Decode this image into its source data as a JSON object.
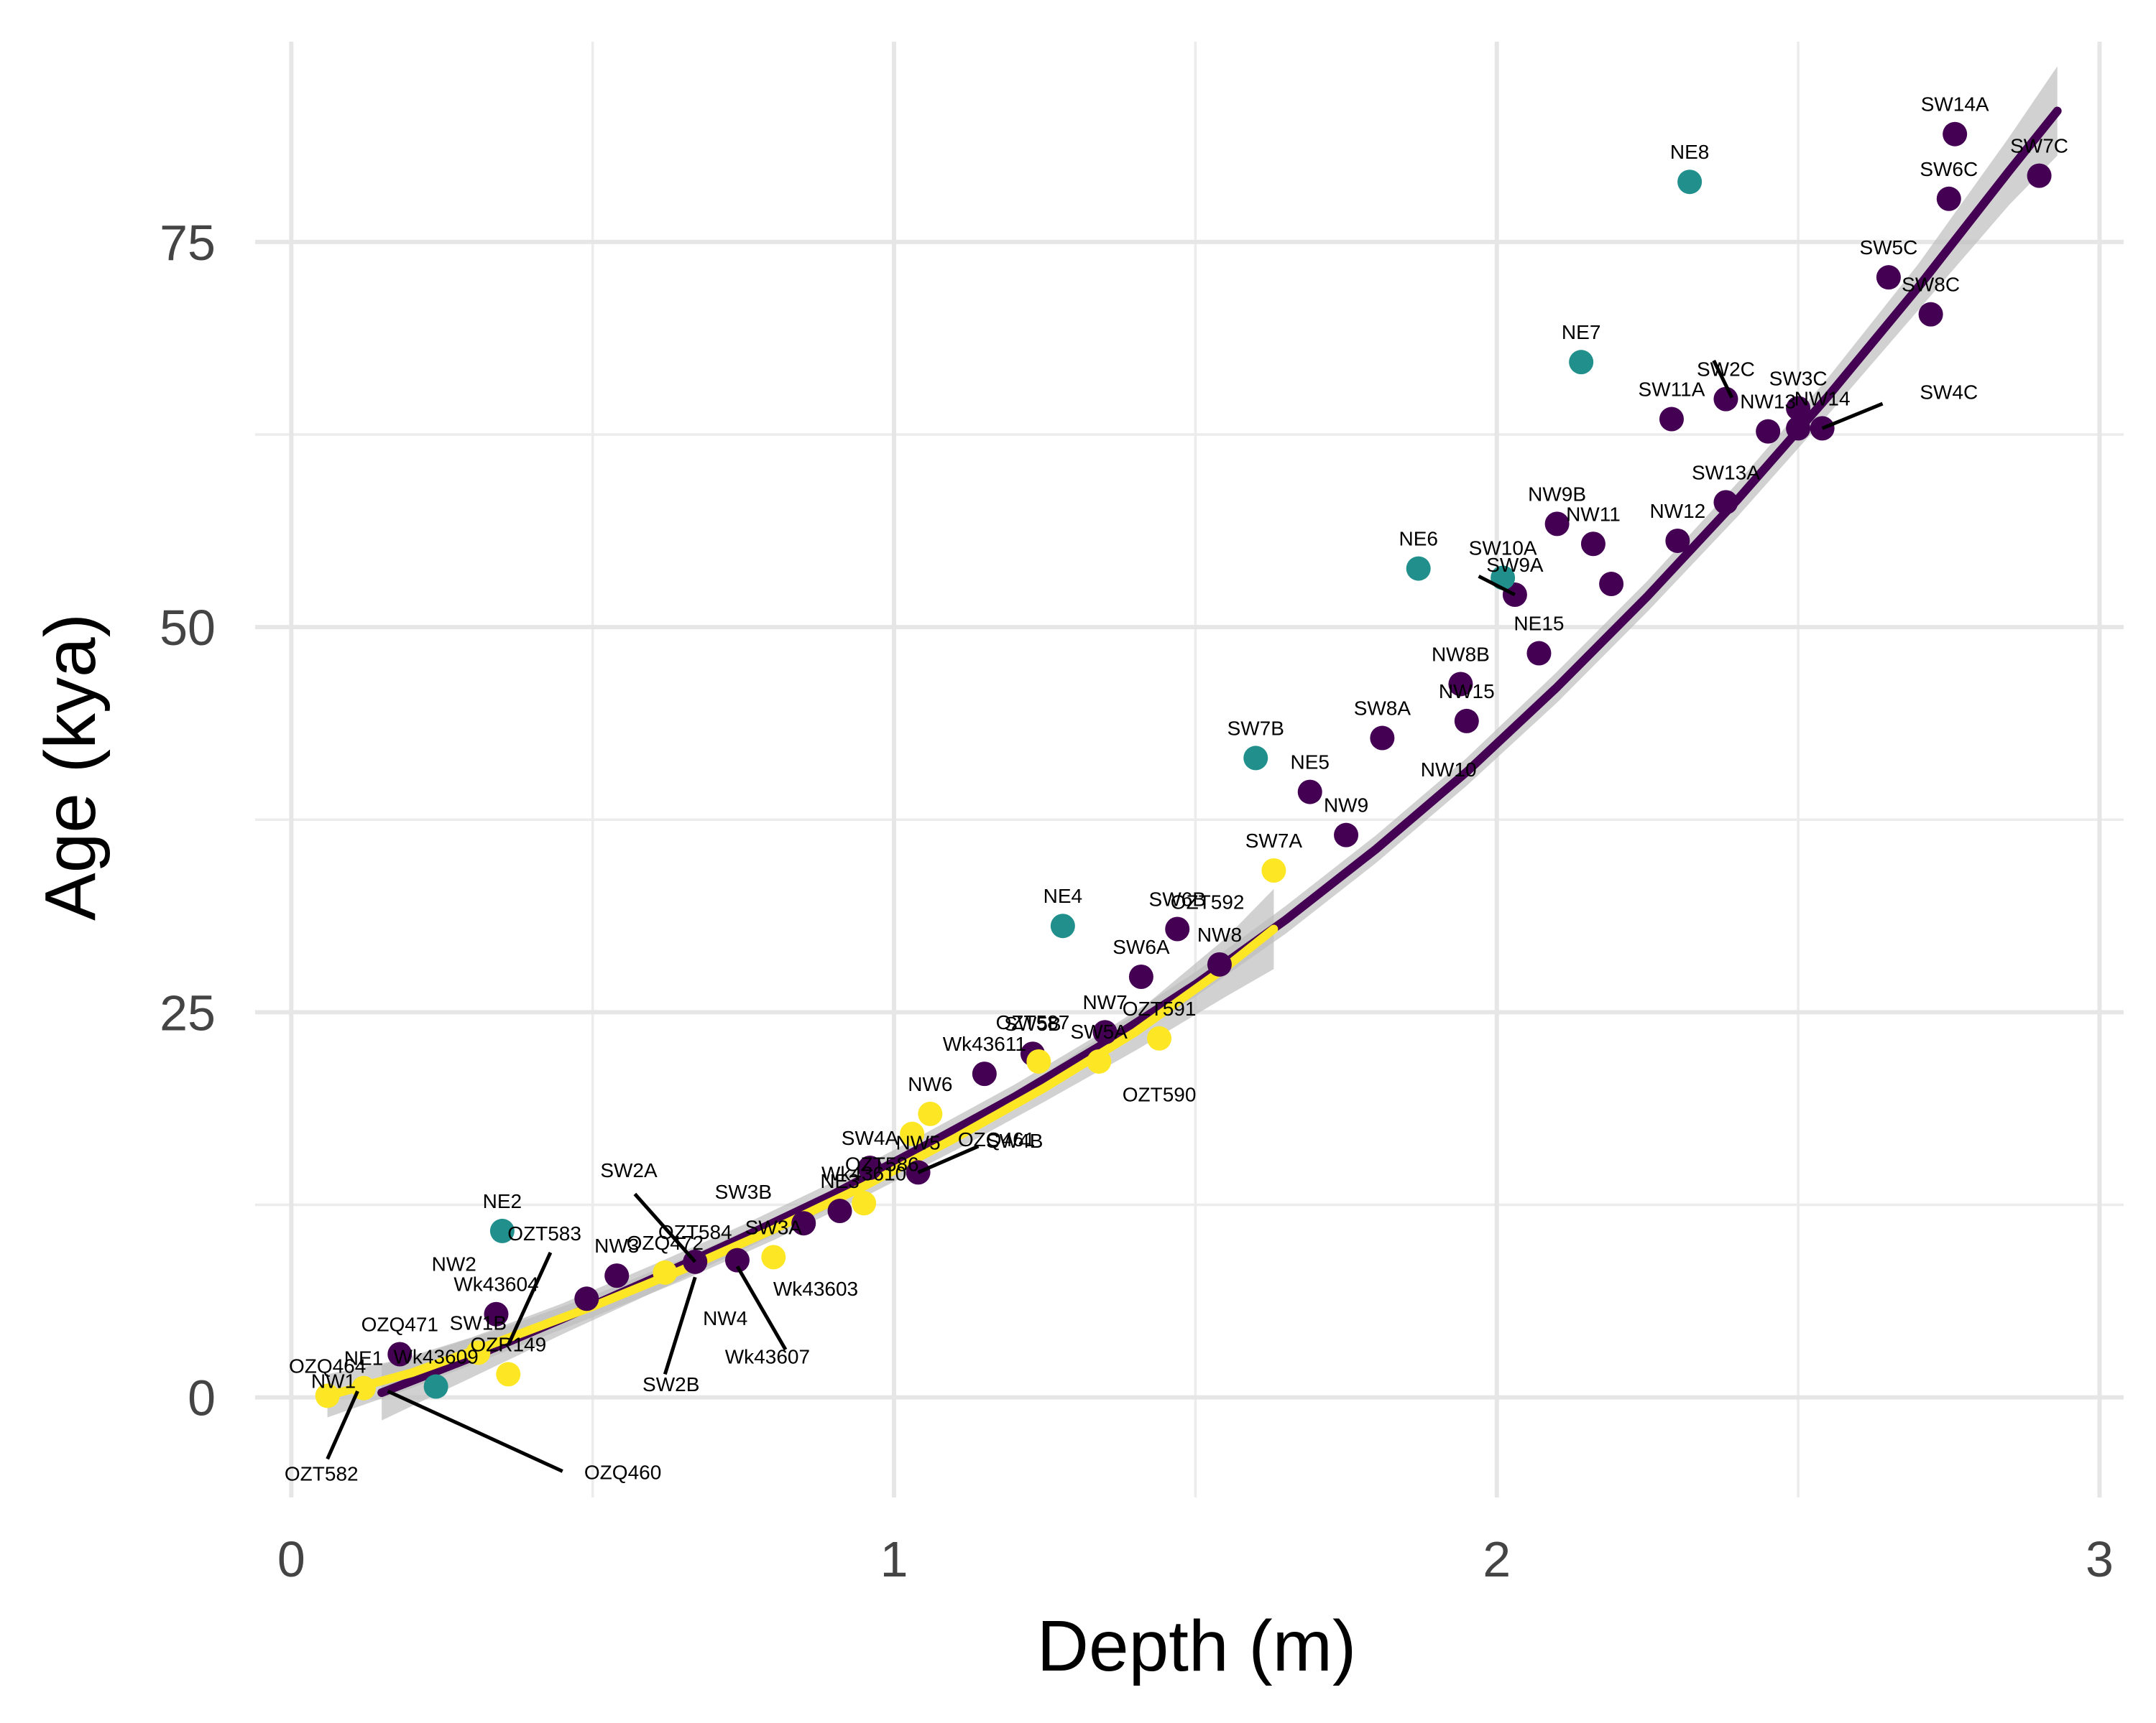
{
  "chart_data": {
    "type": "scatter",
    "xlabel": "Depth (m)",
    "ylabel": "Age (kya)",
    "xlim": [
      -0.06,
      3.04
    ],
    "ylim": [
      -6.5,
      88
    ],
    "x_ticks": [
      0,
      1,
      2,
      3
    ],
    "x_tick_labels": [
      "0",
      "1",
      "2",
      "3"
    ],
    "y_ticks": [
      0,
      25,
      50,
      75
    ],
    "y_tick_labels": [
      "0",
      "25",
      "50",
      "75"
    ],
    "x_minor": [
      0.5,
      1.5,
      2.5
    ],
    "y_minor": [
      12.5,
      37.5,
      62.5
    ],
    "grid": true,
    "legend": "none",
    "colors": {
      "dark": "#440154",
      "teal": "#21908c",
      "yellow": "#fde725",
      "ribbon": "#bdbdbd",
      "grid": "#e6e6e6",
      "text": "#444444"
    },
    "series": [
      {
        "color": "dark",
        "points": [
          {
            "x": 0.18,
            "y": 2.8,
            "label": "OZQ471"
          },
          {
            "x": 0.34,
            "y": 5.4,
            "label": "Wk43604"
          },
          {
            "x": 0.49,
            "y": 6.4,
            "label": ""
          },
          {
            "x": 0.54,
            "y": 7.9,
            "label": "NW3"
          },
          {
            "x": 0.67,
            "y": 8.8,
            "label": "OZT584"
          },
          {
            "x": 0.74,
            "y": 8.9,
            "label": ""
          },
          {
            "x": 0.85,
            "y": 11.3,
            "label": ""
          },
          {
            "x": 0.91,
            "y": 12.1,
            "label": "NE3"
          },
          {
            "x": 0.96,
            "y": 14.9,
            "label": "SW4A"
          },
          {
            "x": 1.04,
            "y": 14.6,
            "label": "NW5"
          },
          {
            "x": 1.15,
            "y": 21.0,
            "label": "Wk43611"
          },
          {
            "x": 1.23,
            "y": 22.3,
            "label": "SW5B"
          },
          {
            "x": 1.35,
            "y": 23.7,
            "label": "NW7"
          },
          {
            "x": 1.41,
            "y": 27.3,
            "label": "SW6A"
          },
          {
            "x": 1.47,
            "y": 30.4,
            "label": "SW6B"
          },
          {
            "x": 1.54,
            "y": 28.1,
            "label": "NW8"
          },
          {
            "x": 1.69,
            "y": 39.3,
            "label": "NE5"
          },
          {
            "x": 1.75,
            "y": 36.5,
            "label": "NW9"
          },
          {
            "x": 1.81,
            "y": 42.8,
            "label": "SW8A"
          },
          {
            "x": 1.94,
            "y": 46.3,
            "label": "NW8B"
          },
          {
            "x": 1.95,
            "y": 43.9,
            "label": "NW15"
          },
          {
            "x": 2.03,
            "y": 52.1,
            "label": "SW9A"
          },
          {
            "x": 2.07,
            "y": 48.3,
            "label": "NE15"
          },
          {
            "x": 2.1,
            "y": 56.7,
            "label": "NW9B"
          },
          {
            "x": 2.16,
            "y": 55.4,
            "label": "NW11"
          },
          {
            "x": 2.19,
            "y": 52.8,
            "label": ""
          },
          {
            "x": 2.29,
            "y": 63.5,
            "label": "SW11A"
          },
          {
            "x": 2.3,
            "y": 55.6,
            "label": "NW12"
          },
          {
            "x": 2.38,
            "y": 58.1,
            "label": "SW13A"
          },
          {
            "x": 2.38,
            "y": 64.8,
            "label": "SW2C"
          },
          {
            "x": 2.45,
            "y": 62.7,
            "label": "NW13"
          },
          {
            "x": 2.5,
            "y": 64.2,
            "label": "SW3C"
          },
          {
            "x": 2.5,
            "y": 62.9,
            "label": ""
          },
          {
            "x": 2.54,
            "y": 62.9,
            "label": "NW14"
          },
          {
            "x": 2.65,
            "y": 72.7,
            "label": "SW5C"
          },
          {
            "x": 2.72,
            "y": 70.3,
            "label": "SW8C"
          },
          {
            "x": 2.75,
            "y": 77.8,
            "label": "SW6C"
          },
          {
            "x": 2.76,
            "y": 82.0,
            "label": "SW14A"
          },
          {
            "x": 2.9,
            "y": 79.3,
            "label": "SW7C"
          }
        ]
      },
      {
        "color": "teal",
        "points": [
          {
            "x": 0.24,
            "y": 0.7,
            "label": "Wk43609"
          },
          {
            "x": 0.35,
            "y": 10.8,
            "label": "NE2"
          },
          {
            "x": 1.28,
            "y": 30.6,
            "label": "NE4"
          },
          {
            "x": 1.6,
            "y": 41.5,
            "label": "SW7B"
          },
          {
            "x": 1.87,
            "y": 53.8,
            "label": "NE6"
          },
          {
            "x": 2.01,
            "y": 53.2,
            "label": "SW10A"
          },
          {
            "x": 2.14,
            "y": 67.2,
            "label": "NE7"
          },
          {
            "x": 2.32,
            "y": 78.9,
            "label": "NE8"
          }
        ]
      },
      {
        "color": "yellow",
        "points": [
          {
            "x": 0.06,
            "y": 0.1,
            "label": "OZQ464"
          },
          {
            "x": 0.12,
            "y": 0.6,
            "label": "NE1"
          },
          {
            "x": 0.31,
            "y": 2.9,
            "label": "SW1B"
          },
          {
            "x": 0.36,
            "y": 1.5,
            "label": "OZR149"
          },
          {
            "x": 0.62,
            "y": 8.1,
            "label": "OZQ472"
          },
          {
            "x": 0.8,
            "y": 9.1,
            "label": "SW3A"
          },
          {
            "x": 0.95,
            "y": 12.6,
            "label": "Wk43610"
          },
          {
            "x": 1.03,
            "y": 17.1,
            "label": ""
          },
          {
            "x": 1.06,
            "y": 18.4,
            "label": "NW6"
          },
          {
            "x": 1.24,
            "y": 21.8,
            "label": ""
          },
          {
            "x": 1.34,
            "y": 21.8,
            "label": "SW5A"
          },
          {
            "x": 1.44,
            "y": 23.3,
            "label": "OZT591"
          },
          {
            "x": 1.63,
            "y": 34.2,
            "label": "SW7A"
          }
        ]
      }
    ],
    "fit_lines": [
      {
        "color": "dark",
        "x": [
          0.15,
          0.3,
          0.45,
          0.6,
          0.75,
          0.9,
          1.05,
          1.2,
          1.35,
          1.5,
          1.65,
          1.8,
          1.95,
          2.1,
          2.25,
          2.4,
          2.55,
          2.7,
          2.85,
          2.93
        ],
        "y": [
          0.3,
          2.6,
          5.1,
          7.7,
          10.4,
          13.2,
          16.3,
          19.5,
          23.0,
          26.8,
          31.0,
          35.6,
          40.6,
          46.1,
          52.0,
          58.3,
          65.0,
          72.1,
          79.6,
          83.5
        ],
        "ci_width": [
          1.8,
          1.3,
          1.0,
          0.9,
          0.8,
          0.8,
          0.8,
          0.8,
          0.8,
          0.8,
          0.9,
          0.9,
          0.9,
          1.0,
          1.0,
          1.1,
          1.2,
          1.5,
          2.2,
          2.9
        ]
      },
      {
        "color": "yellow",
        "x": [
          0.06,
          0.2,
          0.35,
          0.5,
          0.65,
          0.8,
          0.95,
          1.1,
          1.25,
          1.4,
          1.55,
          1.63
        ],
        "y": [
          0.1,
          1.6,
          3.7,
          5.9,
          8.3,
          10.9,
          13.7,
          16.8,
          20.1,
          23.7,
          27.9,
          30.4
        ],
        "ci_width": [
          1.4,
          1.0,
          0.8,
          0.7,
          0.7,
          0.7,
          0.7,
          0.8,
          0.9,
          1.2,
          1.9,
          2.6
        ]
      }
    ],
    "extra_labels": [
      {
        "text": "NW1",
        "x": 0.07,
        "y": 0.6
      },
      {
        "text": "NW2",
        "x": 0.27,
        "y": 8.2
      },
      {
        "text": "OZT583",
        "x": 0.42,
        "y": 10.2
      },
      {
        "text": "SW2A",
        "x": 0.56,
        "y": 14.3
      },
      {
        "text": "SW2B",
        "x": 0.63,
        "y": 0.4
      },
      {
        "text": "NW4",
        "x": 0.72,
        "y": 4.7
      },
      {
        "text": "Wk43603",
        "x": 0.87,
        "y": 6.6
      },
      {
        "text": "Wk43607",
        "x": 0.79,
        "y": 2.2
      },
      {
        "text": "OZT582",
        "x": 0.05,
        "y": -5.4
      },
      {
        "text": "OZQ460",
        "x": 0.55,
        "y": -5.3
      },
      {
        "text": "SW3B",
        "x": 0.75,
        "y": 12.9
      },
      {
        "text": "OZT586",
        "x": 0.98,
        "y": 14.7
      },
      {
        "text": "SW4B",
        "x": 1.2,
        "y": 16.2
      },
      {
        "text": "OZQ461",
        "x": 1.17,
        "y": 16.3
      },
      {
        "text": "OZT587",
        "x": 1.23,
        "y": 23.9
      },
      {
        "text": "OZT590",
        "x": 1.44,
        "y": 19.2
      },
      {
        "text": "OZT592",
        "x": 1.52,
        "y": 31.7
      },
      {
        "text": "NW10",
        "x": 1.92,
        "y": 40.3
      },
      {
        "text": "SW4C",
        "x": 2.75,
        "y": 64.8
      }
    ]
  }
}
